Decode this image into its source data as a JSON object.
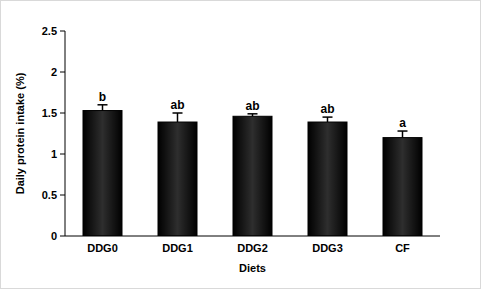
{
  "chart_data": {
    "type": "bar",
    "x_label": "Diets",
    "y_label": "Daily protein intake (%)",
    "categories": [
      "DDG0",
      "DDG1",
      "DDG2",
      "DDG3",
      "CF"
    ],
    "values": [
      1.53,
      1.39,
      1.46,
      1.39,
      1.2
    ],
    "errors": [
      0.07,
      0.11,
      0.03,
      0.06,
      0.08
    ],
    "annotations": [
      "b",
      "ab",
      "ab",
      "ab",
      "a"
    ],
    "color": "#000000",
    "ylim": [
      0,
      2.5
    ],
    "yticks": [
      0,
      0.5,
      1,
      1.5,
      2,
      2.5
    ],
    "grid": false
  }
}
